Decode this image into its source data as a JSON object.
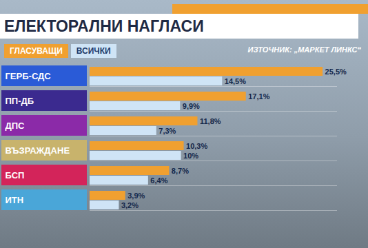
{
  "chart_data": {
    "type": "bar",
    "title": "ЕЛЕКТОРАЛНИ НАГЛАСИ",
    "annotations": [
      "ИЗТОЧНИК: „МАРКЕТ ЛИНКС“"
    ],
    "orientation": "horizontal",
    "categories": [
      "ГЕРБ-СДС",
      "ПП-ДБ",
      "ДПС",
      "ВЪЗРАЖДАНЕ",
      "БСП",
      "ИТН"
    ],
    "colors": [
      "#2a5bd7",
      "#3b2a8f",
      "#8b2aa8",
      "#c8b36c",
      "#d3245a",
      "#4aa6d8"
    ],
    "series": [
      {
        "name": "ГЛАСУВАЩИ",
        "color": "#f0a030",
        "values": [
          25.5,
          17.1,
          11.8,
          10.3,
          8.7,
          3.9
        ],
        "value_labels": [
          "25,5%",
          "17,1%",
          "11,8%",
          "10,3%",
          "8,7%",
          "3,9%"
        ]
      },
      {
        "name": "ВСИЧКИ",
        "color": "#cfe4f6",
        "values": [
          14.5,
          9.9,
          7.3,
          10,
          6.4,
          3.2
        ],
        "value_labels": [
          "14,5%",
          "9,9%",
          "7,3%",
          "10%",
          "6,4%",
          "3,2%"
        ]
      }
    ],
    "xlim": [
      0,
      27
    ],
    "data_labels": true,
    "tick_labels": false,
    "legend": "top-left",
    "grid": false
  }
}
